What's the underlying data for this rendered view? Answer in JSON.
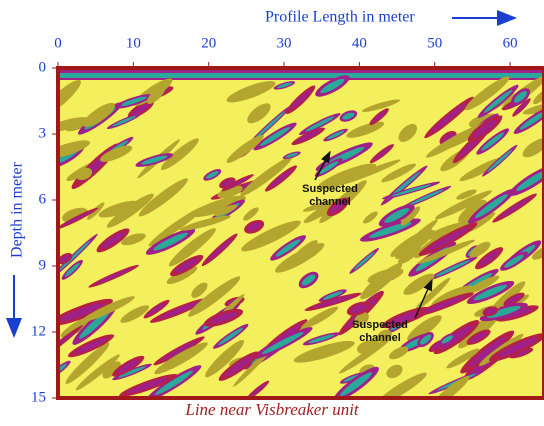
{
  "chart_data": {
    "type": "radargram",
    "xlabel": "Profile Length in meter",
    "ylabel": "Depth in meter",
    "xlim": [
      0,
      64.5
    ],
    "xticks": [
      0,
      10,
      20,
      30,
      40,
      50,
      60
    ],
    "ylim": [
      0,
      15
    ],
    "yticks": [
      0,
      3,
      6,
      9,
      12,
      15
    ],
    "annotations": [
      {
        "lines": [
          "Suspected",
          "channel"
        ]
      },
      {
        "lines": [
          "Suspected",
          "channel"
        ]
      }
    ],
    "caption": "Line near Visbreaker unit"
  }
}
